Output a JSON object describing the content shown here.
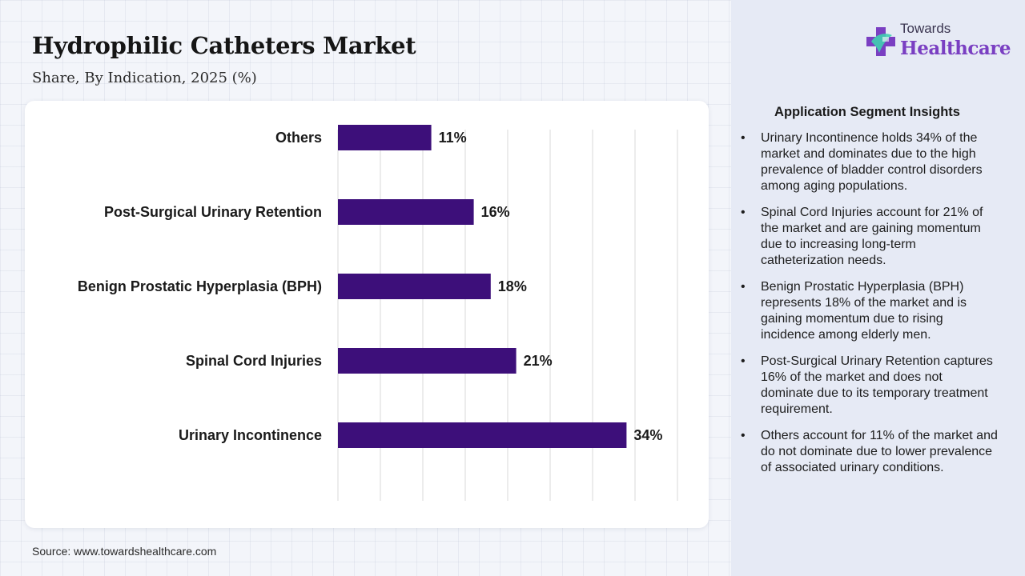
{
  "header": {
    "title": "Hydrophilic Catheters Market",
    "subtitle": "Share, By Indication, 2025 (%)"
  },
  "logo": {
    "line1": "Towards",
    "line2": "Healthcare",
    "icon": "cross-plus-logo-icon"
  },
  "colors": {
    "bar": "#3d0f7a",
    "accent": "#7a3fc2",
    "logo_green": "#3fcfb0"
  },
  "chart_data": {
    "type": "bar",
    "orientation": "horizontal",
    "categories": [
      "Others",
      "Post-Surgical Urinary Retention",
      "Benign Prostatic Hyperplasia (BPH)",
      "Spinal Cord Injuries",
      "Urinary Incontinence"
    ],
    "values": [
      11,
      16,
      18,
      21,
      34
    ],
    "value_labels": [
      "11%",
      "16%",
      "18%",
      "21%",
      "34%"
    ],
    "xlim": [
      0,
      40
    ],
    "grid": "vertical",
    "legend": "none"
  },
  "insights": {
    "title": "Application Segment Insights",
    "items": [
      "Urinary Incontinence holds 34% of the market and dominates due to the high prevalence of bladder control disorders among aging populations.",
      "Spinal Cord Injuries account for 21% of the market and are gaining momentum due to increasing long-term catheterization needs.",
      "Benign Prostatic Hyperplasia (BPH) represents 18% of the market and is gaining momentum due to rising incidence among elderly men.",
      "Post-Surgical Urinary Retention captures 16% of the market and does not dominate due to its temporary treatment requirement.",
      "Others account for 11% of the market and do not dominate due to lower prevalence of associated urinary conditions."
    ]
  },
  "source": "Source: www.towardshealthcare.com"
}
